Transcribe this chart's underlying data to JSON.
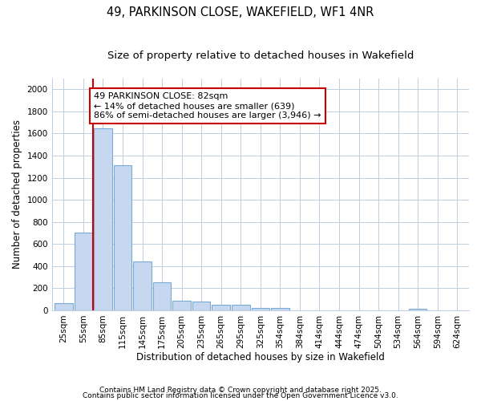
{
  "title1": "49, PARKINSON CLOSE, WAKEFIELD, WF1 4NR",
  "title2": "Size of property relative to detached houses in Wakefield",
  "xlabel": "Distribution of detached houses by size in Wakefield",
  "ylabel": "Number of detached properties",
  "categories": [
    "25sqm",
    "55sqm",
    "85sqm",
    "115sqm",
    "145sqm",
    "175sqm",
    "205sqm",
    "235sqm",
    "265sqm",
    "295sqm",
    "325sqm",
    "354sqm",
    "384sqm",
    "414sqm",
    "444sqm",
    "474sqm",
    "504sqm",
    "534sqm",
    "564sqm",
    "594sqm",
    "624sqm"
  ],
  "values": [
    65,
    700,
    1650,
    1310,
    440,
    250,
    90,
    80,
    50,
    50,
    25,
    25,
    0,
    0,
    0,
    0,
    0,
    0,
    15,
    0,
    0
  ],
  "bar_color": "#c5d8f0",
  "bar_edge_color": "#7aaad4",
  "vline_color": "#cc0000",
  "annotation_line1": "49 PARKINSON CLOSE: 82sqm",
  "annotation_line2": "← 14% of detached houses are smaller (639)",
  "annotation_line3": "86% of semi-detached houses are larger (3,946) →",
  "annotation_box_color": "#ffffff",
  "annotation_box_edge": "#cc0000",
  "ylim": [
    0,
    2100
  ],
  "yticks": [
    0,
    200,
    400,
    600,
    800,
    1000,
    1200,
    1400,
    1600,
    1800,
    2000
  ],
  "grid_color": "#c0cfe0",
  "bg_color": "#ffffff",
  "fig_bg_color": "#ffffff",
  "footer1": "Contains HM Land Registry data © Crown copyright and database right 2025.",
  "footer2": "Contains public sector information licensed under the Open Government Licence v3.0.",
  "title_fontsize": 10.5,
  "subtitle_fontsize": 9.5,
  "xlabel_fontsize": 8.5,
  "ylabel_fontsize": 8.5,
  "tick_fontsize": 7.5,
  "annotation_fontsize": 8,
  "footer_fontsize": 6.5
}
